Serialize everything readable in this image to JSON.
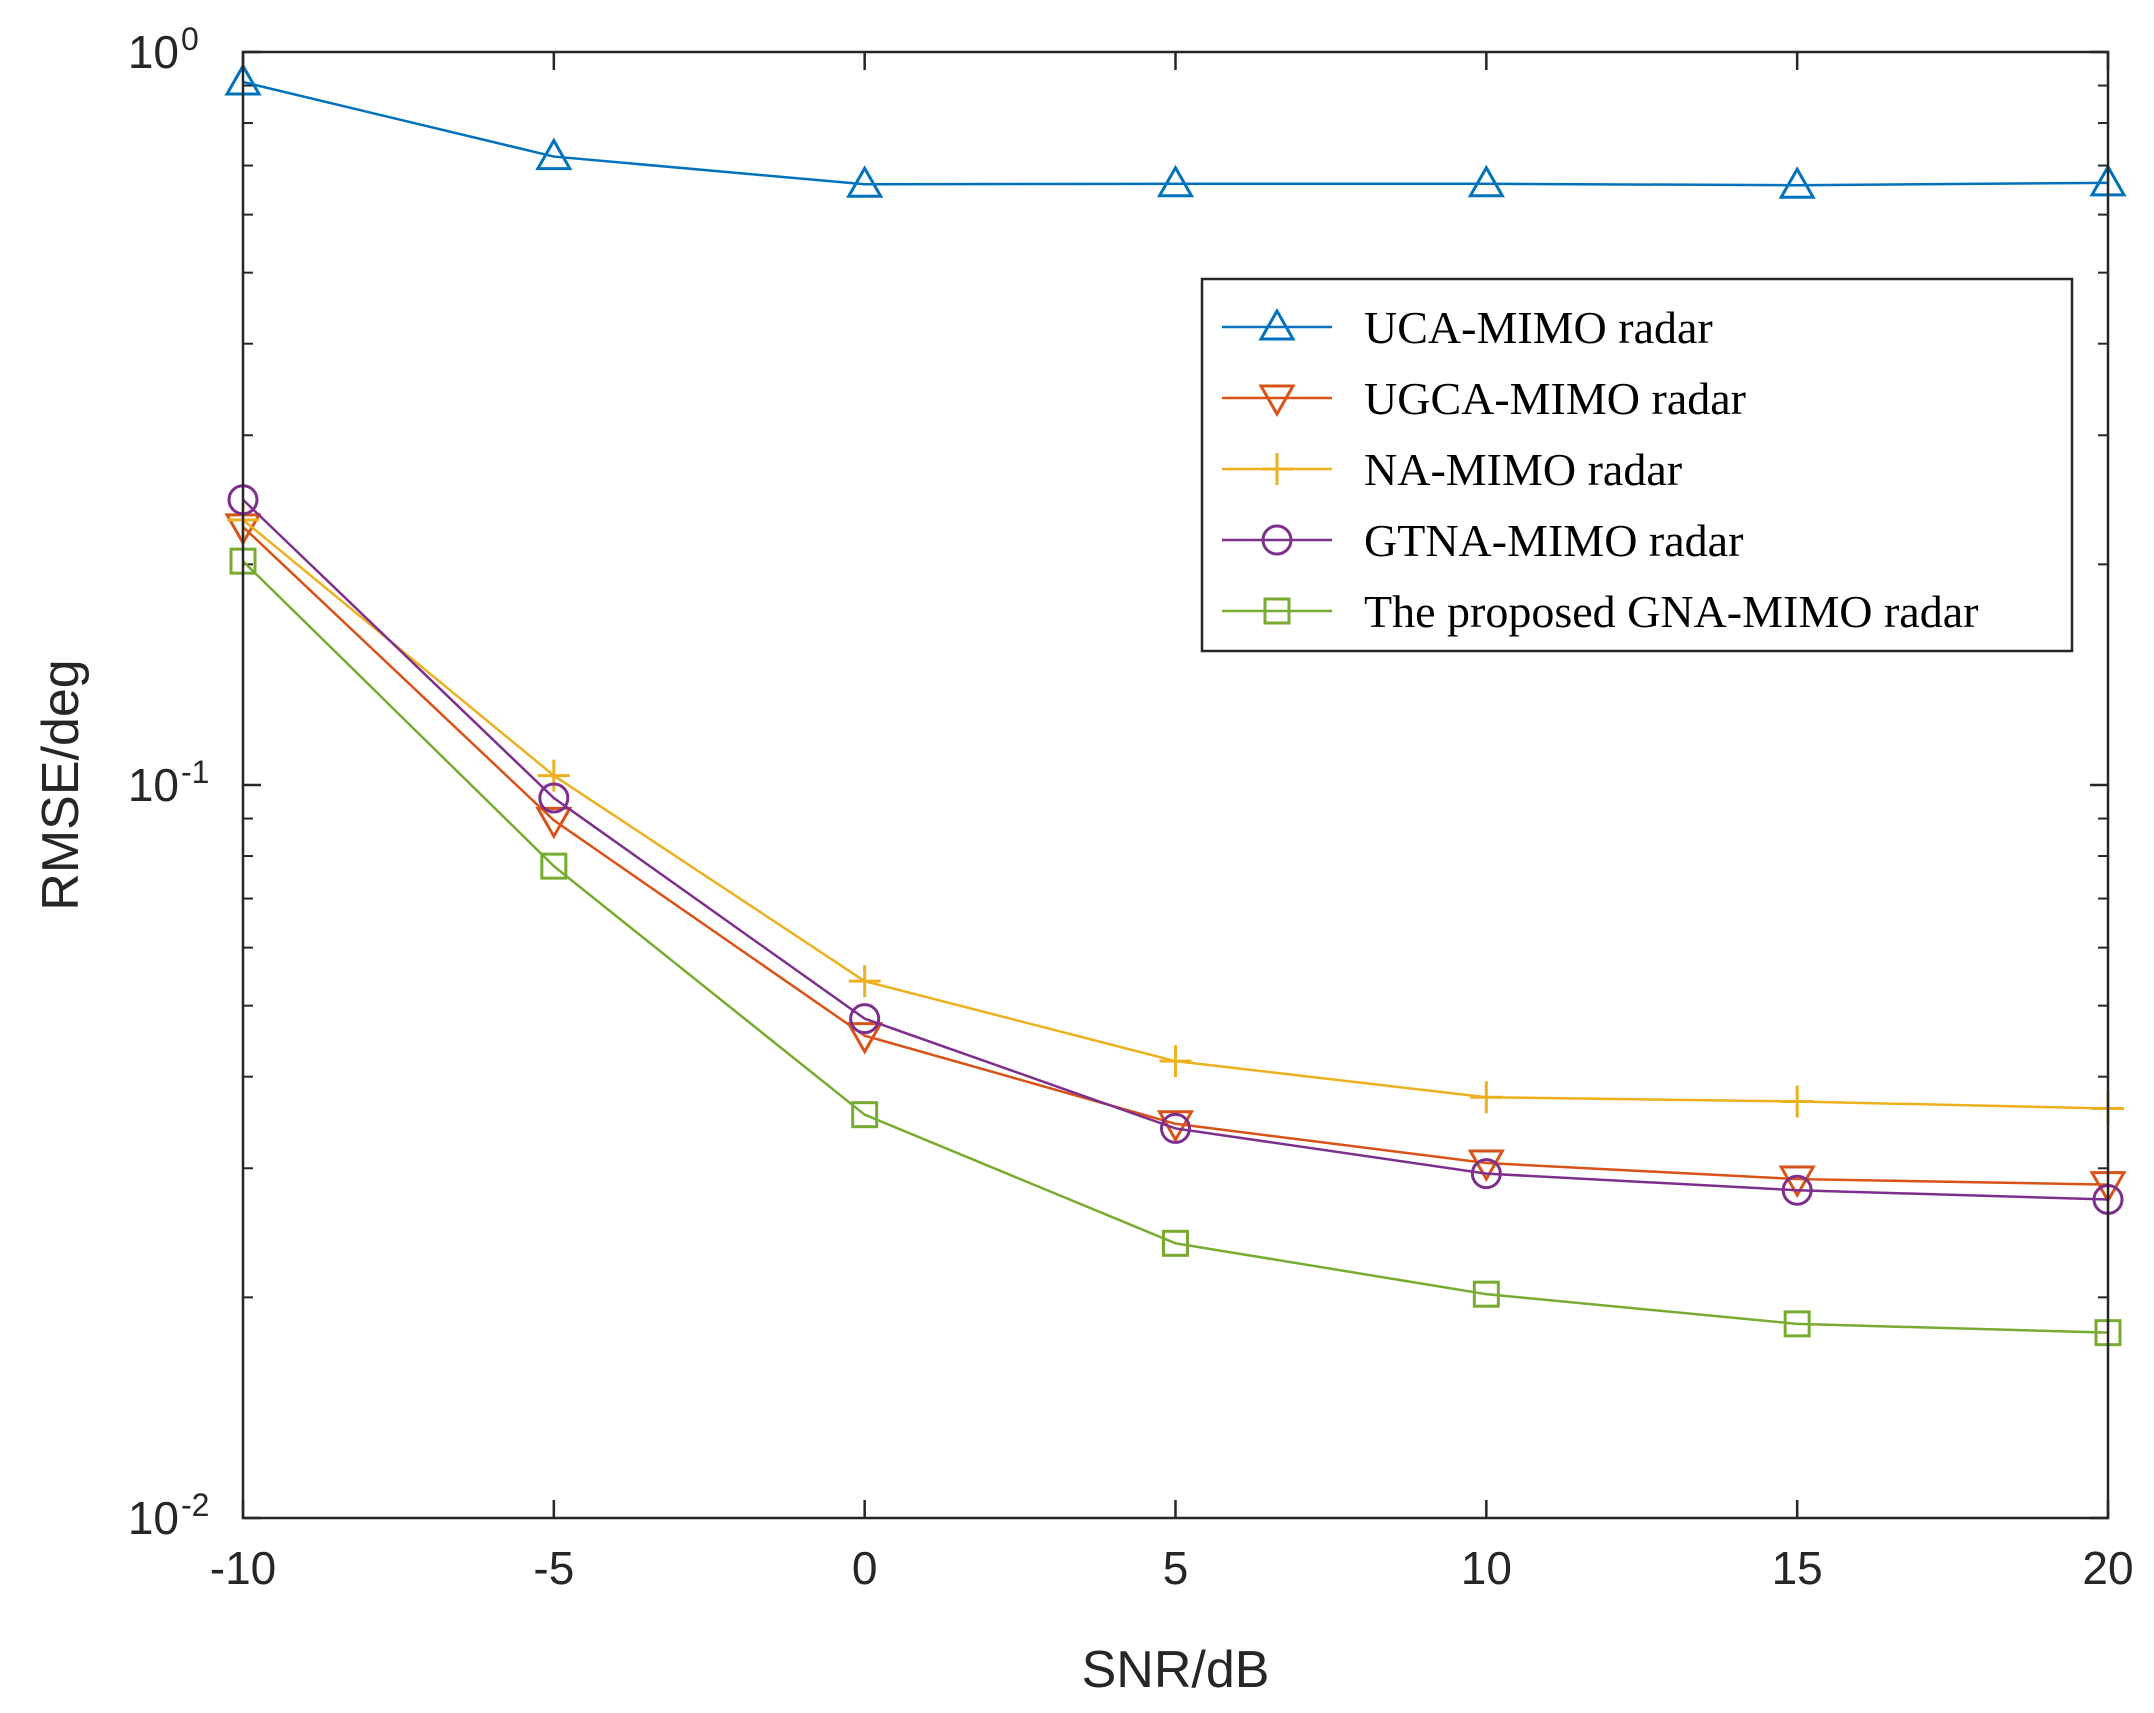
{
  "chart_data": {
    "type": "line",
    "title": "",
    "xlabel": "SNR/dB",
    "ylabel": "RMSE/deg",
    "xlim": [
      -10,
      20
    ],
    "ylim": [
      0.01,
      1
    ],
    "yscale": "log",
    "x": [
      -10,
      -5,
      0,
      5,
      10,
      15,
      20
    ],
    "xticks": [
      {
        "value": -10,
        "label": "-10"
      },
      {
        "value": -5,
        "label": "-5"
      },
      {
        "value": 0,
        "label": "0"
      },
      {
        "value": 5,
        "label": "5"
      },
      {
        "value": 10,
        "label": "10"
      },
      {
        "value": 15,
        "label": "15"
      },
      {
        "value": 20,
        "label": "20"
      }
    ],
    "yticks": [
      {
        "value": 1,
        "base": "10",
        "exp": "0"
      },
      {
        "value": 0.1,
        "base": "10",
        "exp": "-1"
      },
      {
        "value": 0.01,
        "base": "10",
        "exp": "-2"
      }
    ],
    "grid": false,
    "legend_position": "top-right",
    "series": [
      {
        "name": "UCA-MIMO radar",
        "marker": "triangle-up",
        "color": "#0072BD",
        "values": [
          0.91,
          0.72,
          0.66,
          0.661,
          0.661,
          0.658,
          0.663
        ]
      },
      {
        "name": "UGCA-MIMO radar",
        "marker": "triangle-down",
        "color": "#D95319",
        "values": [
          0.225,
          0.0895,
          0.0455,
          0.0345,
          0.0305,
          0.029,
          0.0285
        ]
      },
      {
        "name": "NA-MIMO radar",
        "marker": "plus",
        "color": "#EDB120",
        "values": [
          0.23,
          0.103,
          0.054,
          0.042,
          0.0375,
          0.037,
          0.0362
        ]
      },
      {
        "name": "GTNA-MIMO radar",
        "marker": "circle",
        "color": "#7E2F8E",
        "values": [
          0.245,
          0.096,
          0.048,
          0.034,
          0.0295,
          0.028,
          0.0272
        ]
      },
      {
        "name": "The proposed GNA-MIMO radar",
        "marker": "square",
        "color": "#77AC30",
        "values": [
          0.202,
          0.0775,
          0.0355,
          0.0237,
          0.0202,
          0.0184,
          0.0179
        ]
      }
    ]
  }
}
